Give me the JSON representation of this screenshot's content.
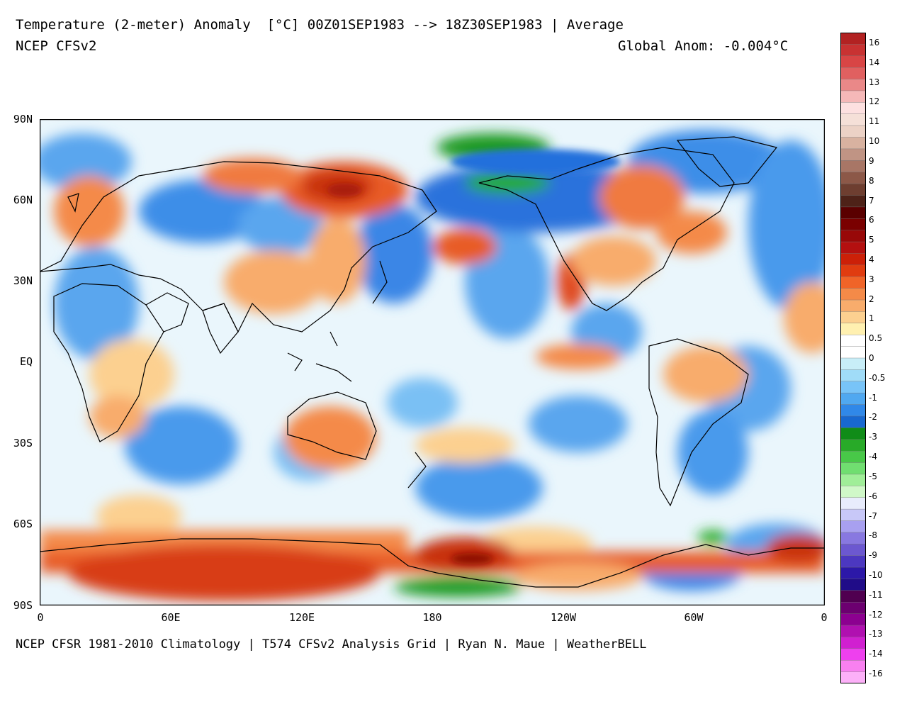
{
  "header": {
    "title": "Temperature (2-meter) Anomaly  [°C] 00Z01SEP1983 --> 18Z30SEP1983 | Average",
    "model": "NCEP CFSv2",
    "global_anom": "Global Anom: -0.004°C"
  },
  "footer": "NCEP CFSR 1981-2010 Climatology | T574 CFSv2 Analysis Grid | Ryan N. Maue | WeatherBELL",
  "map": {
    "lat_labels": [
      "90N",
      "60N",
      "30N",
      "EQ",
      "30S",
      "60S",
      "90S"
    ],
    "lon_labels": [
      "0",
      "60E",
      "120E",
      "180",
      "120W",
      "60W",
      "0"
    ],
    "projection": "equirectangular"
  },
  "colorbar": {
    "labels": [
      "16",
      "14",
      "13",
      "12",
      "11",
      "10",
      "9",
      "8",
      "7",
      "6",
      "5",
      "4",
      "3",
      "2",
      "1",
      "0.5",
      "0",
      "-0.5",
      "-1",
      "-2",
      "-3",
      "-4",
      "-5",
      "-6",
      "-7",
      "-8",
      "-9",
      "-10",
      "-11",
      "-12",
      "-13",
      "-14",
      "-16"
    ],
    "colors": [
      "#b22222",
      "#c83232",
      "#d84545",
      "#e06060",
      "#ea8888",
      "#f5b8b8",
      "#fde0e0",
      "#f5e0d8",
      "#ecd2c6",
      "#d8b2a0",
      "#c09484",
      "#a87666",
      "#8c5848",
      "#6e3e30",
      "#4e2218",
      "#5a0000",
      "#7a0000",
      "#980808",
      "#b41010",
      "#cc2008",
      "#e03c10",
      "#f06428",
      "#f48a48",
      "#f8ac6c",
      "#fcd090",
      "#fff0b0",
      "#ffffff",
      "#ffffff",
      "#c8eef8",
      "#a0dcf8",
      "#78c4f8",
      "#50a8f0",
      "#3088e8",
      "#1868d0",
      "#108c18",
      "#28aa28",
      "#48c848",
      "#70de70",
      "#a0ee98",
      "#d0f8c8",
      "#e8ecfc",
      "#c8c8f8",
      "#a8a0f0",
      "#8878e0",
      "#6c58d0",
      "#4c38c0",
      "#2c18a8",
      "#200c88",
      "#500050",
      "#6c0070",
      "#8c0090",
      "#b010b0",
      "#d020d0",
      "#ee40ee",
      "#f880f0",
      "#fcb0f8"
    ]
  },
  "legend_colors": {
    "warm": "#e04020",
    "cold": "#3880e8",
    "very_cold": "#20a030",
    "neutral": "#ffffff"
  }
}
